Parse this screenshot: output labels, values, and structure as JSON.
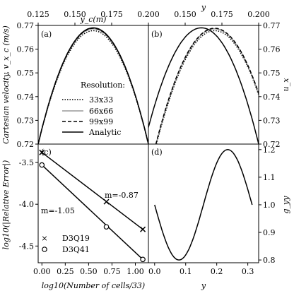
{
  "chart_data": [
    {
      "panel": "(a)",
      "type": "line",
      "xlabel": "y_c(m)",
      "ylabel": "Cartesian velocity, v_x_c (m/s)",
      "xlim": [
        0.125,
        0.2
      ],
      "ylim": [
        0.72,
        0.77
      ],
      "xticks": [
        "0.125",
        "0.150",
        "0.175",
        "0.200"
      ],
      "yticks": [
        "0.72",
        "0.73",
        "0.74",
        "0.75",
        "0.76",
        "0.77"
      ],
      "legend_title": "Resolution:",
      "series": [
        {
          "name": "33x33",
          "style": "dotted",
          "color": "#000000",
          "peak": 0.7678
        },
        {
          "name": "66x66",
          "style": "solid",
          "color": "#999999",
          "peak": 0.7686
        },
        {
          "name": "99x99",
          "style": "dashed",
          "color": "#000000",
          "peak": 0.7688
        },
        {
          "name": "Analytic",
          "style": "solid",
          "color": "#000000",
          "peak": 0.769
        }
      ],
      "curve": {
        "x_start": 0.125,
        "x_end": 0.2,
        "base": 0.72
      }
    },
    {
      "panel": "(b)",
      "type": "line",
      "xlabel": "y",
      "ylabel": "u_x",
      "xlim": [
        0.125,
        0.2
      ],
      "ylim": [
        0.72,
        0.77
      ],
      "xticks": [
        "0.150",
        "0.175",
        "0.200"
      ],
      "yticks": [
        "0.72",
        "0.73",
        "0.74",
        "0.75",
        "0.76",
        "0.77"
      ],
      "series": [
        {
          "name": "33x33",
          "style": "dotted",
          "color": "#000000",
          "x_start": 0.1305,
          "x_end": 0.2098,
          "peak": 0.7678
        },
        {
          "name": "66x66",
          "style": "solid",
          "color": "#999999",
          "x_start": 0.1302,
          "x_end": 0.2099,
          "peak": 0.7686
        },
        {
          "name": "99x99",
          "style": "dashed",
          "color": "#000000",
          "x_start": 0.1301,
          "x_end": 0.21,
          "peak": 0.7688
        },
        {
          "name": "Analytic",
          "style": "solid",
          "color": "#000000",
          "x_start": 0.1221,
          "x_end": 0.2,
          "peak": 0.769
        }
      ]
    },
    {
      "panel": "(c)",
      "type": "scatter",
      "xlabel": "log10(Number of cells/33)",
      "ylabel": "log10(|Relative Error|)",
      "xlim": [
        -0.04,
        1.14
      ],
      "ylim": [
        -4.7,
        -3.28
      ],
      "xticks": [
        "0.00",
        "0.25",
        "0.50",
        "0.75",
        "1.00"
      ],
      "yticks": [
        "-3.5",
        "-4.0",
        "-4.5"
      ],
      "series": [
        {
          "name": "D3Q19",
          "marker": "x",
          "x": [
            0.0,
            0.69,
            1.08
          ],
          "y": [
            -3.38,
            -3.97,
            -4.3
          ],
          "fit_label": "m=-0.87"
        },
        {
          "name": "D3Q41",
          "marker": "o",
          "x": [
            0.0,
            0.69,
            1.08
          ],
          "y": [
            -3.53,
            -4.27,
            -4.66
          ],
          "fit_label": "m=-1.05"
        }
      ]
    },
    {
      "panel": "(d)",
      "type": "line",
      "xlabel": "y",
      "ylabel": "g_yy",
      "xlim": [
        -0.02,
        0.335
      ],
      "ylim": [
        0.79,
        1.22
      ],
      "xticks": [
        "0.0",
        "0.1",
        "0.2",
        "0.3"
      ],
      "yticks": [
        "0.8",
        "0.9",
        "1.0",
        "1.1",
        "1.2"
      ],
      "series": [
        {
          "name": "g_yy",
          "style": "solid",
          "color": "#000000",
          "x_range": [
            0.0,
            0.314
          ],
          "mean": 1.0,
          "amplitude": 0.2
        }
      ]
    }
  ]
}
